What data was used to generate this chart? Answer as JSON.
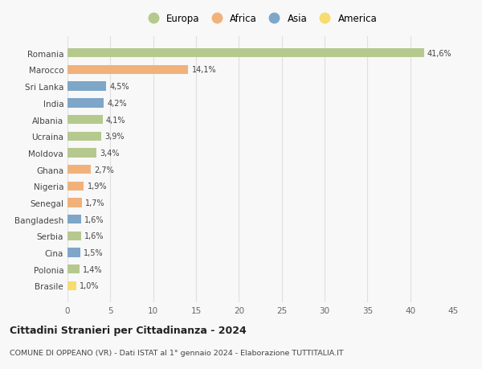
{
  "categories": [
    "Romania",
    "Marocco",
    "Sri Lanka",
    "India",
    "Albania",
    "Ucraina",
    "Moldova",
    "Ghana",
    "Nigeria",
    "Senegal",
    "Bangladesh",
    "Serbia",
    "Cina",
    "Polonia",
    "Brasile"
  ],
  "values": [
    41.6,
    14.1,
    4.5,
    4.2,
    4.1,
    3.9,
    3.4,
    2.7,
    1.9,
    1.7,
    1.6,
    1.6,
    1.5,
    1.4,
    1.0
  ],
  "labels": [
    "41,6%",
    "14,1%",
    "4,5%",
    "4,2%",
    "4,1%",
    "3,9%",
    "3,4%",
    "2,7%",
    "1,9%",
    "1,7%",
    "1,6%",
    "1,6%",
    "1,5%",
    "1,4%",
    "1,0%"
  ],
  "continents": [
    "Europa",
    "Africa",
    "Asia",
    "Asia",
    "Europa",
    "Europa",
    "Europa",
    "Africa",
    "Africa",
    "Africa",
    "Asia",
    "Europa",
    "Asia",
    "Europa",
    "America"
  ],
  "colors": {
    "Europa": "#b5c98e",
    "Africa": "#f0b27a",
    "Asia": "#7ea6c8",
    "America": "#f7dc6f"
  },
  "legend_order": [
    "Europa",
    "Africa",
    "Asia",
    "America"
  ],
  "title": "Cittadini Stranieri per Cittadinanza - 2024",
  "subtitle": "COMUNE DI OPPEANO (VR) - Dati ISTAT al 1° gennaio 2024 - Elaborazione TUTTITALIA.IT",
  "xlim": [
    0,
    45
  ],
  "xticks": [
    0,
    5,
    10,
    15,
    20,
    25,
    30,
    35,
    40,
    45
  ],
  "background_color": "#f8f8f8",
  "grid_color": "#e0e0e0"
}
